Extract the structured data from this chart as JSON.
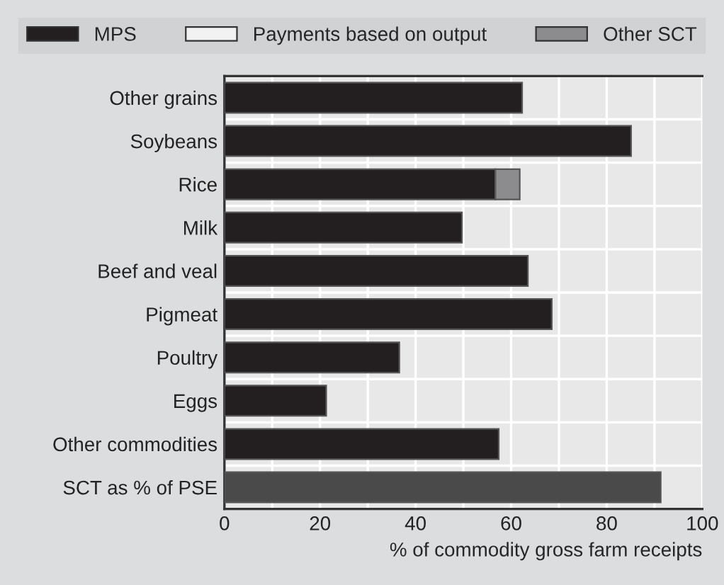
{
  "chart_data": {
    "type": "bar",
    "orientation": "horizontal",
    "stacked": true,
    "categories": [
      "Other grains",
      "Soybeans",
      "Rice",
      "Milk",
      "Beef and veal",
      "Pigmeat",
      "Poultry",
      "Eggs",
      "Other commodities",
      "SCT as % of PSE"
    ],
    "series": [
      {
        "name": "MPS",
        "color": "#231f20",
        "colors": [
          "#231f20",
          "#231f20",
          "#231f20",
          "#231f20",
          "#231f20",
          "#231f20",
          "#231f20",
          "#231f20",
          "#231f20",
          "#4a4a4a"
        ],
        "values": [
          62.3,
          85.1,
          56.7,
          49.7,
          63.5,
          68.5,
          36.6,
          21.3,
          57.4,
          91.3
        ]
      },
      {
        "name": "Payments based on output",
        "color": "#f2f2f2",
        "values": [
          null,
          null,
          null,
          null,
          null,
          null,
          null,
          null,
          null,
          null
        ]
      },
      {
        "name": "Other SCT",
        "color": "#8c8c8e",
        "values": [
          null,
          null,
          5.1,
          null,
          null,
          null,
          null,
          null,
          null,
          null
        ]
      }
    ],
    "xlabel": "% of commodity gross farm receipts",
    "xlim": [
      0,
      100
    ],
    "xticks": [
      0,
      20,
      40,
      60,
      80,
      100
    ],
    "grid": true,
    "legend": "top"
  }
}
